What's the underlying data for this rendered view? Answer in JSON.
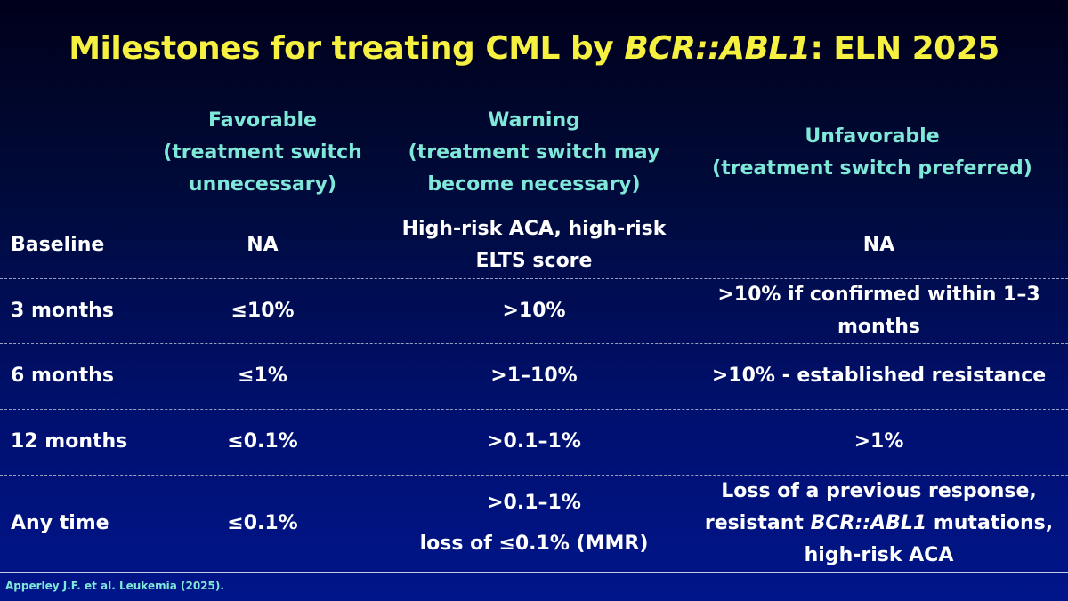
{
  "title": {
    "prefix": "Milestones for treating CML by ",
    "italic": "BCR::ABL1",
    "suffix": ": ELN 2025"
  },
  "headers": {
    "favorable": "Favorable\n(treatment switch\nunnecessary)",
    "warning": "Warning\n(treatment switch may\nbecome necessary)",
    "unfavorable": "Unfavorable\n(treatment switch preferred)"
  },
  "rows": [
    {
      "label": "Baseline",
      "favorable": "NA",
      "warning": "High-risk ACA, high-risk\nELTS score",
      "unfavorable": "NA"
    },
    {
      "label": "3 months",
      "favorable": "≤10%",
      "warning": ">10%",
      "unfavorable": ">10% if confirmed within 1–3\nmonths"
    },
    {
      "label": "6 months",
      "favorable": "≤1%",
      "warning": ">1–10%",
      "unfavorable": ">10% - established resistance"
    },
    {
      "label": "12 months",
      "favorable": "≤0.1%",
      "warning": ">0.1–1%",
      "unfavorable": ">1%"
    },
    {
      "label": "Any time",
      "favorable": "≤0.1%",
      "warning_line1": ">0.1–1%",
      "warning_line2": "loss of ≤0.1% (MMR)",
      "unfavorable_line1": "Loss of a previous response,",
      "unfavorable_line2_prefix": "resistant ",
      "unfavorable_line2_italic": "BCR::ABL1",
      "unfavorable_line2_suffix": " mutations,",
      "unfavorable_line3": "high-risk ACA"
    }
  ],
  "source": "Apperley J.F. et al. Leukemia (2025).",
  "colors": {
    "title": "#f6f040",
    "header": "#7fe8d8",
    "body_text": "#ffffff",
    "background_top": "#00001a",
    "background_bottom": "#00158a"
  }
}
